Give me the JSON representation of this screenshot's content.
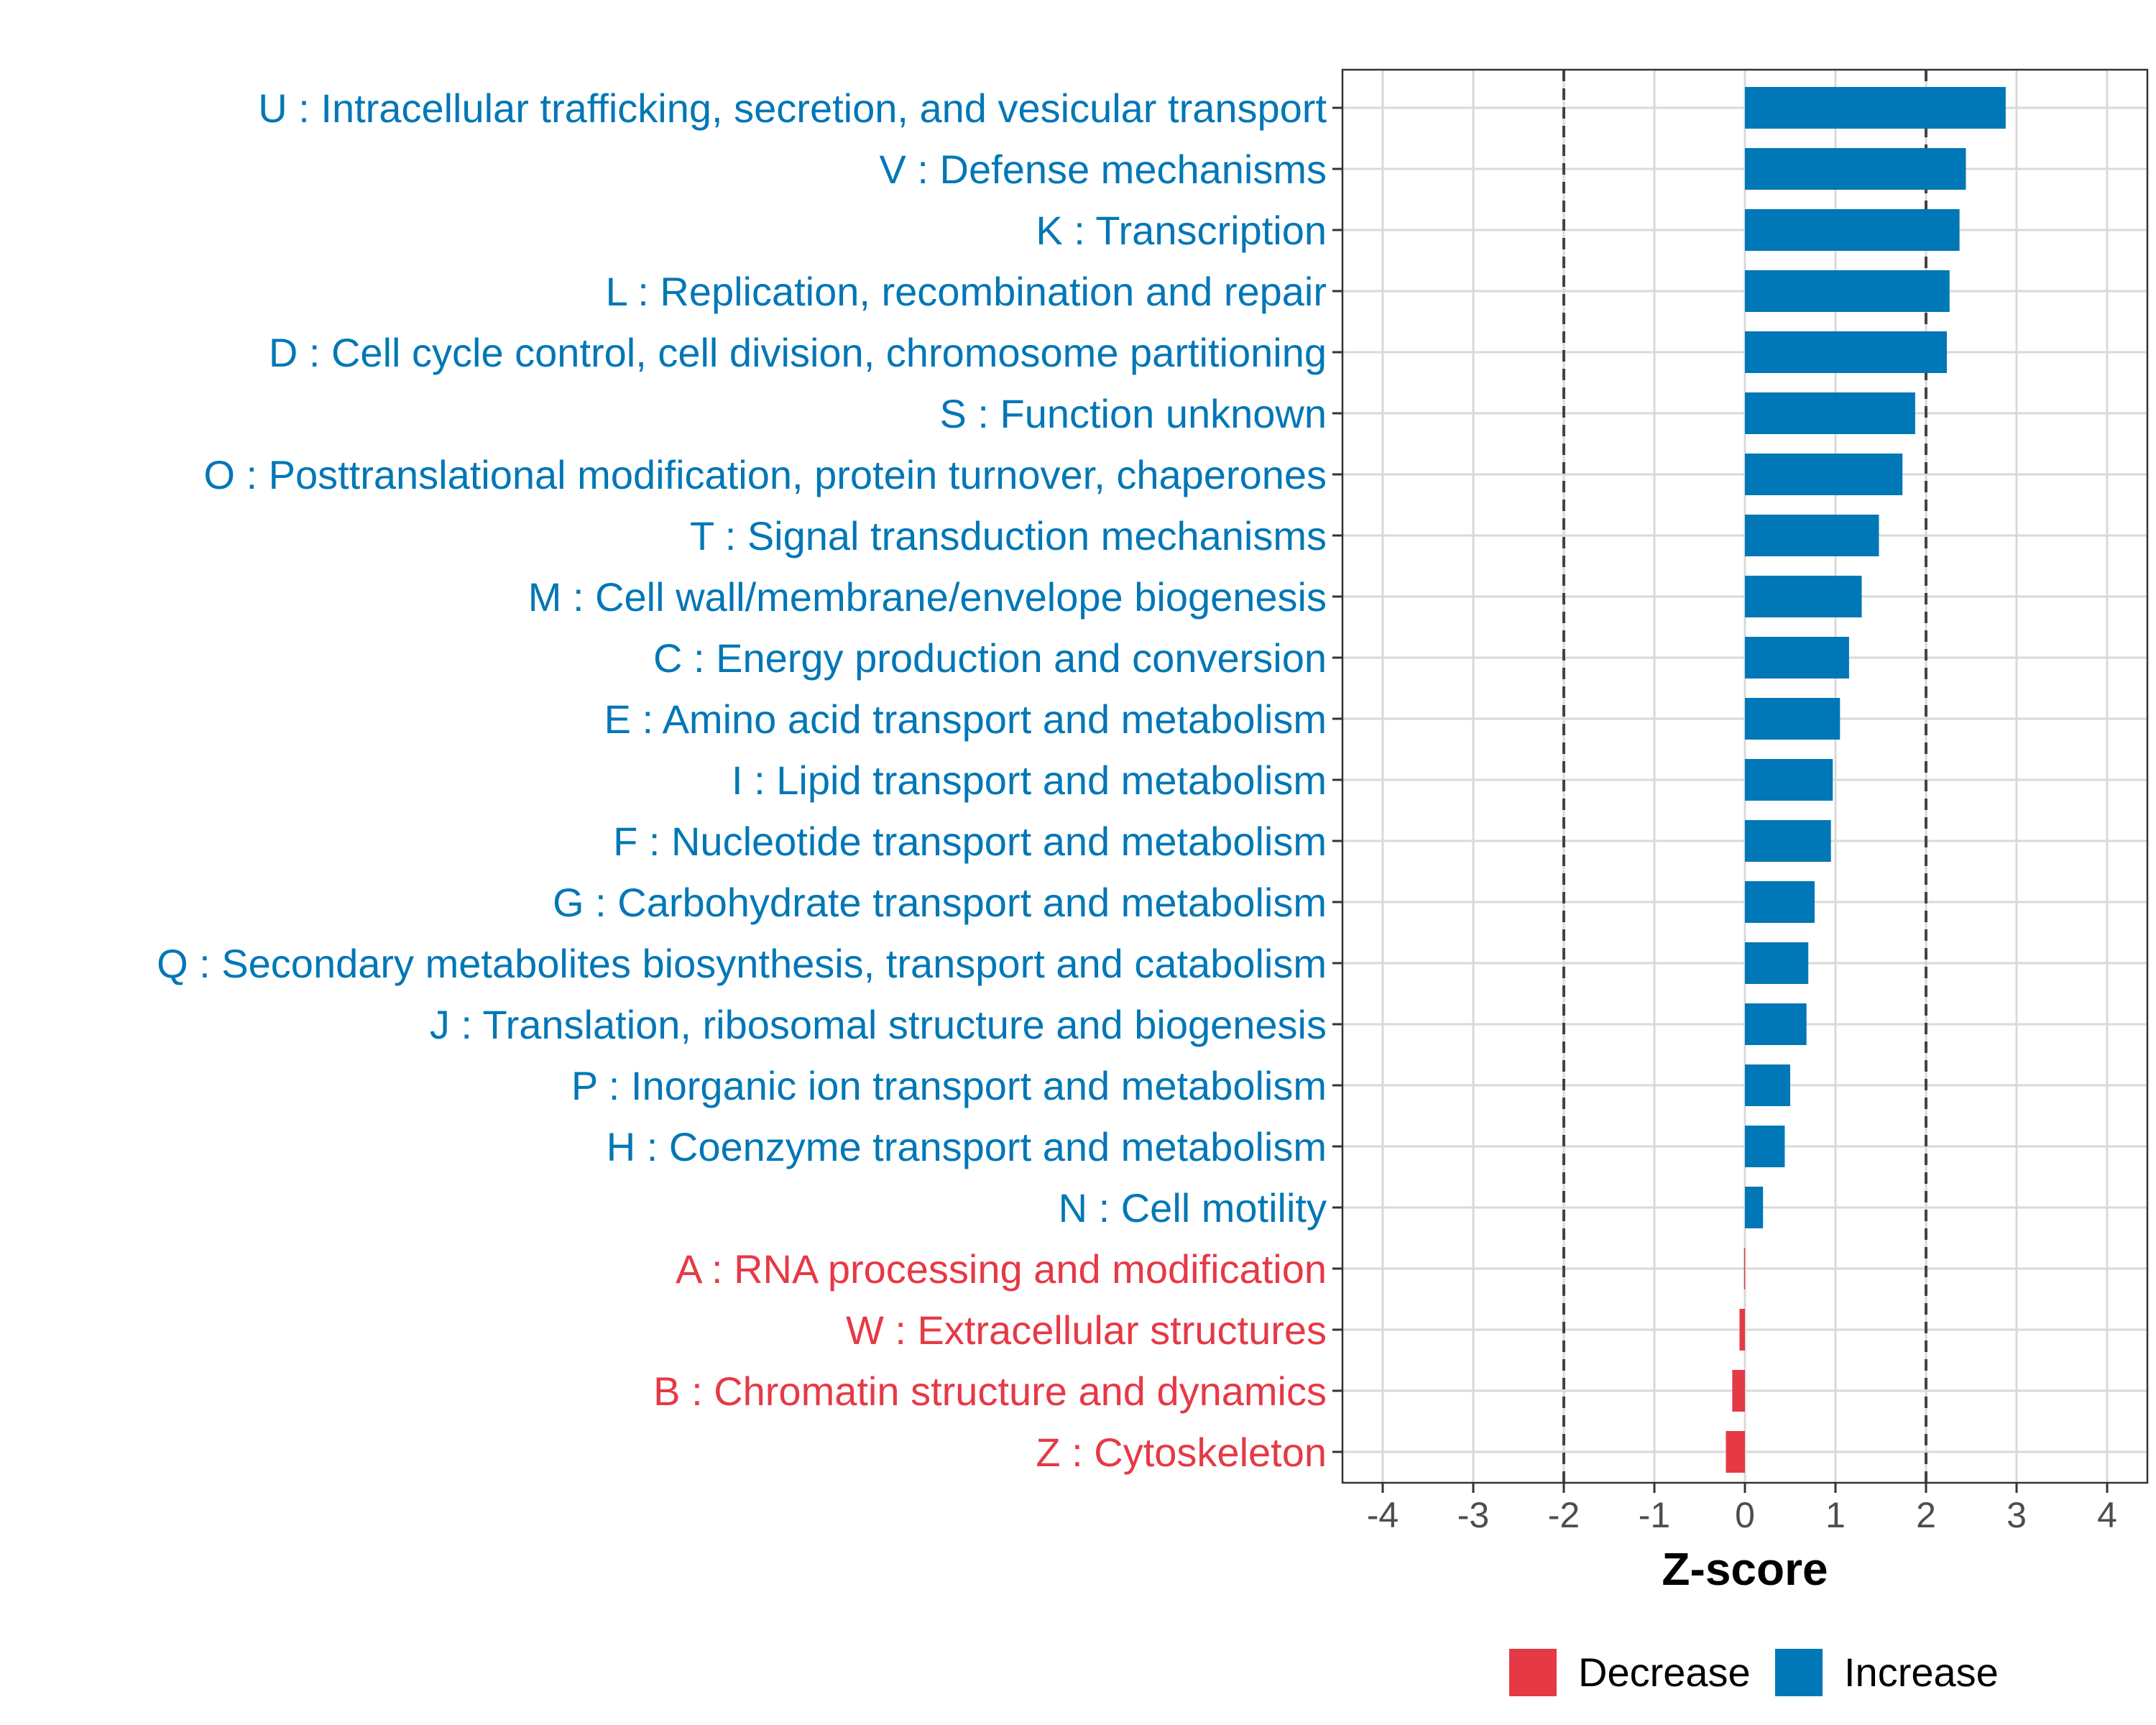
{
  "chart_data": {
    "type": "bar",
    "orientation": "horizontal",
    "xlabel": "Z-score",
    "ylabel": "",
    "xlim": [
      -4,
      4
    ],
    "x_ticks": [
      "-4",
      "-3",
      "-2",
      "-1",
      "0",
      "1",
      "2",
      "3",
      "4"
    ],
    "reference_lines": [
      -2,
      2
    ],
    "grid": true,
    "legend_position": "bottom",
    "colors": {
      "Decrease": "#e63946",
      "Increase": "#0077b6"
    },
    "legend": [
      {
        "name": "Decrease",
        "color": "#e63946"
      },
      {
        "name": "Increase",
        "color": "#0077b6"
      }
    ],
    "categories": [
      "U : Intracellular trafficking, secretion, and vesicular transport",
      "V : Defense mechanisms",
      "K : Transcription",
      "L : Replication, recombination and repair",
      "D : Cell cycle control, cell division, chromosome partitioning",
      "S : Function unknown",
      "O : Posttranslational modification, protein turnover, chaperones",
      "T : Signal transduction mechanisms",
      "M : Cell wall/membrane/envelope biogenesis",
      "C : Energy production and conversion",
      "E : Amino acid transport and metabolism",
      "I : Lipid transport and metabolism",
      "F : Nucleotide transport and metabolism",
      "G : Carbohydrate transport and metabolism",
      "Q : Secondary metabolites biosynthesis, transport and catabolism",
      "J : Translation, ribosomal structure and biogenesis",
      "P : Inorganic ion transport and metabolism",
      "H : Coenzyme transport and metabolism",
      "N : Cell motility",
      "A : RNA processing and modification",
      "W : Extracellular structures",
      "B : Chromatin structure and dynamics",
      "Z : Cytoskeleton"
    ],
    "values": [
      2.88,
      2.44,
      2.37,
      2.26,
      2.23,
      1.88,
      1.74,
      1.48,
      1.29,
      1.15,
      1.05,
      0.97,
      0.95,
      0.77,
      0.7,
      0.68,
      0.5,
      0.44,
      0.2,
      -0.01,
      -0.06,
      -0.14,
      -0.21
    ],
    "groups": [
      "Increase",
      "Increase",
      "Increase",
      "Increase",
      "Increase",
      "Increase",
      "Increase",
      "Increase",
      "Increase",
      "Increase",
      "Increase",
      "Increase",
      "Increase",
      "Increase",
      "Increase",
      "Increase",
      "Increase",
      "Increase",
      "Increase",
      "Decrease",
      "Decrease",
      "Decrease",
      "Decrease"
    ]
  }
}
